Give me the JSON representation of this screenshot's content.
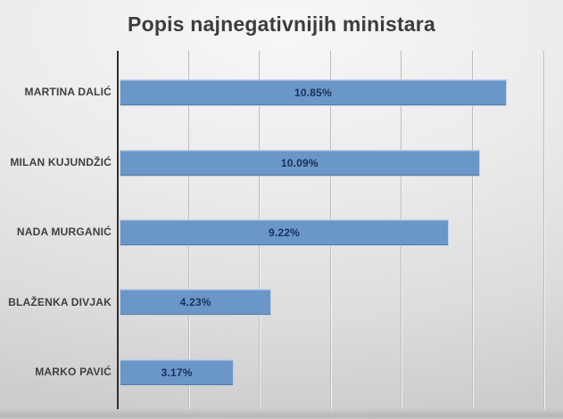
{
  "title": "Popis najnegativnijih ministara",
  "chart_data": {
    "type": "bar",
    "orientation": "horizontal",
    "title": "Popis najnegativnijih ministara",
    "categories": [
      "MARTINA DALIĆ",
      "MILAN KUJUNDŽIĆ",
      "NADA MURGANIĆ",
      "BLAŽENKA DIVJAK",
      "MARKO PAVIĆ"
    ],
    "values": [
      10.85,
      10.09,
      9.22,
      4.23,
      3.17
    ],
    "value_labels": [
      "10.85%",
      "10.09%",
      "9.22%",
      "4.23%",
      "3.17%"
    ],
    "xlabel": "",
    "ylabel": "",
    "xlim": [
      0,
      12
    ],
    "gridline_step": 2,
    "grid": true,
    "legend": false,
    "x_tick_labels_visible": false,
    "value_label_position": "center",
    "colors": {
      "bar": "#6b96c8",
      "value_label": "#16325c",
      "category_label": "#3f3f3f",
      "title": "#3d3d3d",
      "axis_line": "#2d2d2d",
      "gridline": "#bdbdbd",
      "background": "#e3e3e3"
    }
  }
}
